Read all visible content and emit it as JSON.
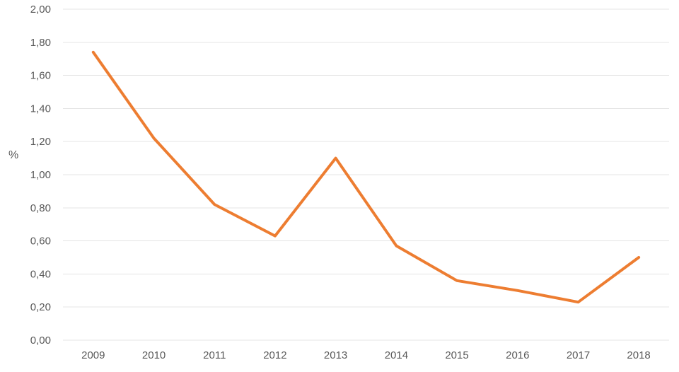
{
  "chart_data": {
    "type": "line",
    "title": "",
    "xlabel": "",
    "ylabel": "%",
    "categories": [
      "2009",
      "2010",
      "2011",
      "2012",
      "2013",
      "2014",
      "2015",
      "2016",
      "2017",
      "2018"
    ],
    "series": [
      {
        "name": "series-1",
        "color": "#ED7D31",
        "values": [
          1.74,
          1.22,
          0.82,
          0.63,
          1.1,
          0.57,
          0.36,
          0.3,
          0.23,
          0.5
        ]
      }
    ],
    "ylim": [
      0,
      2
    ],
    "ytick_step": 0.2,
    "y_tick_values": [
      2.0,
      1.8,
      1.6,
      1.4,
      1.2,
      1.0,
      0.8,
      0.6,
      0.4,
      0.2,
      0.0
    ],
    "y_tick_labels": [
      "2,00",
      "1,80",
      "1,60",
      "1,40",
      "1,20",
      "1,00",
      "0,80",
      "0,60",
      "0,40",
      "0,20",
      "0,00"
    ],
    "decimal_separator": ",",
    "grid": true,
    "legend": "none",
    "gridline_color": "#e4e4e4",
    "tick_label_color": "#595959",
    "background_color": "#ffffff"
  }
}
